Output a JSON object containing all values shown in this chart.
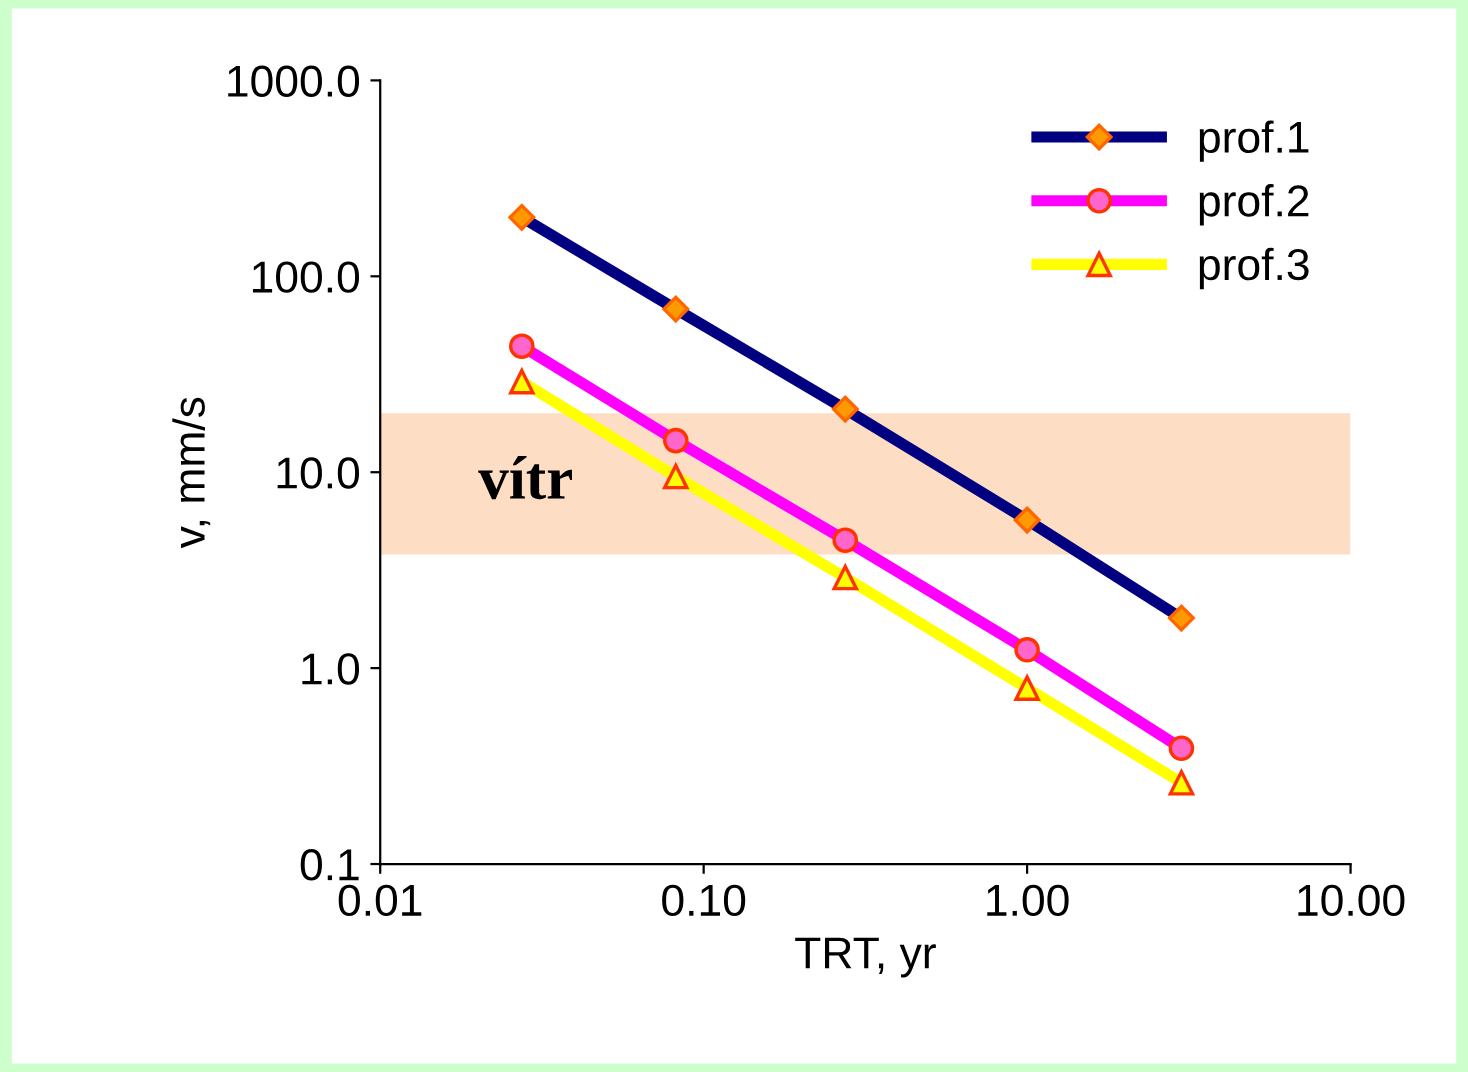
{
  "chart_data": {
    "type": "line",
    "xlabel": "TRT, yr",
    "ylabel": "v, mm/s",
    "x": [
      0.0274,
      0.082,
      0.274,
      1.0,
      3.0
    ],
    "series": [
      {
        "name": "prof.1",
        "color": "#000080",
        "marker": "diamond",
        "values": [
          200,
          68,
          21,
          5.7,
          1.8
        ]
      },
      {
        "name": "prof.2",
        "color": "#ff00ff",
        "marker": "circle",
        "values": [
          44,
          14.5,
          4.5,
          1.24,
          0.39
        ]
      },
      {
        "name": "prof.3",
        "color": "#ffff00",
        "marker": "triangle",
        "values": [
          29,
          9.5,
          2.9,
          0.79,
          0.26
        ]
      }
    ],
    "log": "xy",
    "xlim": [
      0.01,
      10
    ],
    "ylim": [
      0.1,
      1000
    ],
    "xticks": [
      {
        "value": 0.01,
        "label": "0.01"
      },
      {
        "value": 0.1,
        "label": "0.10"
      },
      {
        "value": 1,
        "label": "1.00"
      },
      {
        "value": 10,
        "label": "10.00"
      }
    ],
    "yticks": [
      {
        "value": 0.1,
        "label": "0.1"
      },
      {
        "value": 1,
        "label": "1.0"
      },
      {
        "value": 10,
        "label": "10.0"
      },
      {
        "value": 100,
        "label": "100.0"
      },
      {
        "value": 1000,
        "label": "1000.0"
      }
    ],
    "bands": [
      {
        "axis": "y",
        "from": 3.8,
        "to": 20,
        "label": "vítr",
        "color": "#fcd5b4"
      }
    ],
    "grid": false,
    "legend": "top right"
  }
}
